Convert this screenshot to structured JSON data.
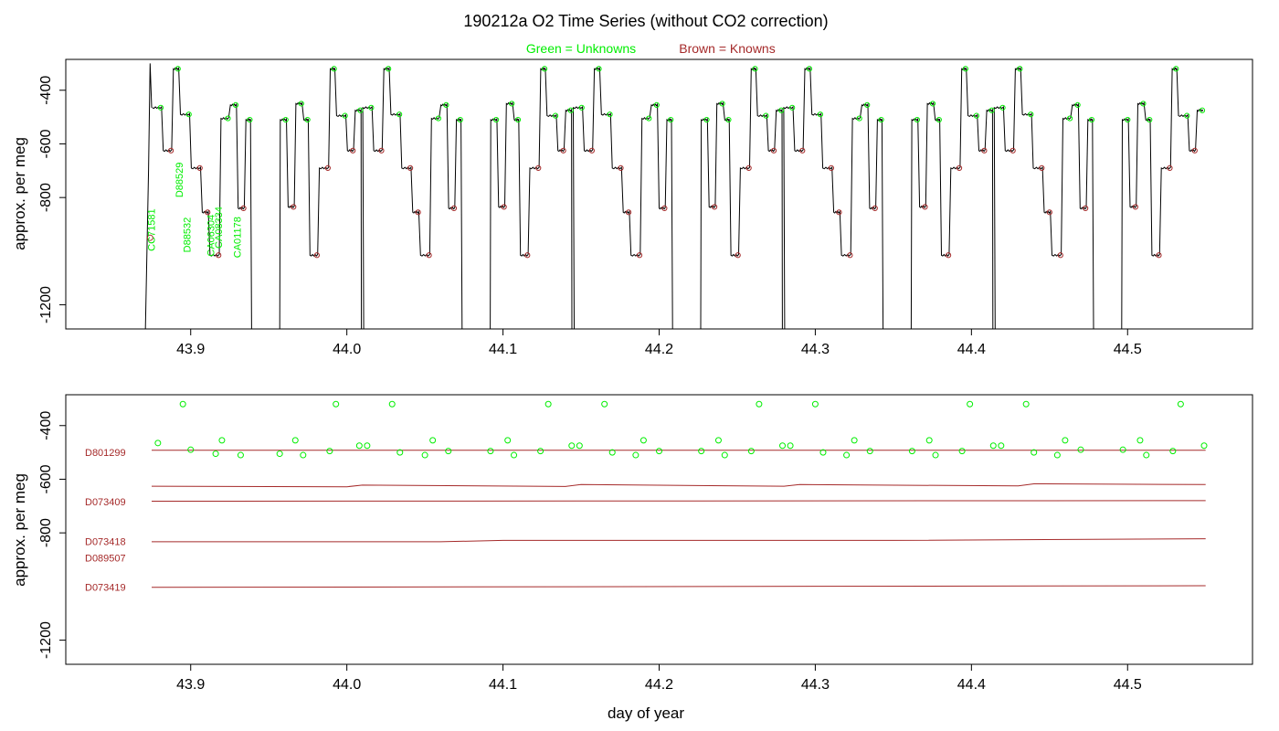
{
  "title": "190212a   O2 Time Series (without CO2 correction)",
  "legend": {
    "unknowns": "Green = Unknowns",
    "knowns": "Brown = Knowns"
  },
  "colors": {
    "unknowns": "#00ee00",
    "knowns": "#a52a2a",
    "trace": "#000000"
  },
  "x_axis": {
    "label": "day of year",
    "range": [
      43.82,
      44.58
    ],
    "ticks": [
      43.9,
      44.0,
      44.1,
      44.2,
      44.3,
      44.4,
      44.5
    ],
    "tick_labels": [
      "43.9",
      "44.0",
      "44.1",
      "44.2",
      "44.3",
      "44.4",
      "44.5"
    ]
  },
  "chart_data": [
    {
      "type": "line",
      "panel": "top",
      "ylabel": "approx. per meg",
      "ylim": [
        -1290,
        -285
      ],
      "yticks": [
        -400,
        -600,
        -800,
        -1200
      ],
      "ytick_labels": [
        "-400",
        "-600",
        "-800",
        "-1200"
      ],
      "sample_labels": [
        {
          "text": "CC71581",
          "x": 43.877,
          "y": -1000
        },
        {
          "text": "D88529",
          "x": 43.895,
          "y": -800
        },
        {
          "text": "D88532",
          "x": 43.9,
          "y": -1005
        },
        {
          "text": "CA06304",
          "x": 43.915,
          "y": -1020
        },
        {
          "text": "CA08334",
          "x": 43.92,
          "y": -990
        },
        {
          "text": "CA01178",
          "x": 43.932,
          "y": -1025
        }
      ],
      "cycle": {
        "start": 43.875,
        "period": 0.1348,
        "segments": [
          {
            "d": 0.0,
            "v": -465,
            "k": "U"
          },
          {
            "d": 0.007,
            "v": -625,
            "k": "K"
          },
          {
            "d": 0.0135,
            "v": -320,
            "k": "U"
          },
          {
            "d": 0.018,
            "v": -490,
            "k": "U"
          },
          {
            "d": 0.025,
            "v": -690,
            "k": "K"
          },
          {
            "d": 0.032,
            "v": -855,
            "k": "K"
          },
          {
            "d": 0.037,
            "v": -1015,
            "k": "K"
          },
          {
            "d": 0.044,
            "v": -505,
            "k": "U"
          },
          {
            "d": 0.05,
            "v": -455,
            "k": "U"
          },
          {
            "d": 0.055,
            "v": -840,
            "k": "K"
          },
          {
            "d": 0.06,
            "v": -510,
            "k": "U"
          },
          {
            "d": 0.064,
            "v": null,
            "k": "G"
          },
          {
            "d": 0.082,
            "v": -510,
            "k": "U"
          },
          {
            "d": 0.087,
            "v": -835,
            "k": "K"
          },
          {
            "d": 0.092,
            "v": -450,
            "k": "U"
          },
          {
            "d": 0.097,
            "v": -510,
            "k": "U"
          },
          {
            "d": 0.101,
            "v": -1015,
            "k": "K"
          },
          {
            "d": 0.107,
            "v": -690,
            "k": "K"
          },
          {
            "d": 0.114,
            "v": -320,
            "k": "U"
          },
          {
            "d": 0.118,
            "v": -495,
            "k": "U"
          },
          {
            "d": 0.125,
            "v": -625,
            "k": "K"
          },
          {
            "d": 0.13,
            "v": -475,
            "k": "U"
          }
        ]
      }
    },
    {
      "type": "line",
      "panel": "bottom",
      "ylabel": "approx. per meg",
      "ylim": [
        -1290,
        -285
      ],
      "yticks": [
        -400,
        -600,
        -800,
        -1200
      ],
      "ytick_labels": [
        "-400",
        "-600",
        "-800",
        "-1200"
      ],
      "series": [
        {
          "name": "D801299",
          "label_y": -500,
          "x": [
            43.875,
            44.55
          ],
          "y": [
            -492,
            -492
          ]
        },
        {
          "name": "",
          "x": [
            43.875,
            44.0,
            44.01,
            44.14,
            44.15,
            44.28,
            44.29,
            44.43,
            44.44,
            44.55
          ],
          "y": [
            -626,
            -628,
            -622,
            -627,
            -620,
            -626,
            -620,
            -625,
            -617,
            -620
          ]
        },
        {
          "name": "D073409",
          "label_y": -684,
          "x": [
            43.875,
            44.55
          ],
          "y": [
            -682,
            -680
          ]
        },
        {
          "name": "D073418",
          "label_y": -832,
          "x": [
            43.875,
            44.06,
            44.1,
            44.35,
            44.55
          ],
          "y": [
            -833,
            -833,
            -828,
            -828,
            -822
          ]
        },
        {
          "name": "D089507",
          "label_y": -893,
          "x": [],
          "y": []
        },
        {
          "name": "D073419",
          "label_y": -1002,
          "x": [
            43.875,
            44.55
          ],
          "y": [
            -1003,
            -997
          ]
        }
      ],
      "points": {
        "x": [
          43.879,
          43.895,
          43.9,
          43.916,
          43.92,
          43.932,
          43.957,
          43.967,
          43.972,
          43.989,
          43.993,
          44.008,
          44.013,
          44.029,
          44.034,
          44.05,
          44.055,
          44.065,
          44.092,
          44.103,
          44.107,
          44.124,
          44.129,
          44.144,
          44.149,
          44.165,
          44.17,
          44.185,
          44.19,
          44.2,
          44.227,
          44.238,
          44.242,
          44.259,
          44.264,
          44.279,
          44.284,
          44.3,
          44.305,
          44.32,
          44.325,
          44.335,
          44.362,
          44.373,
          44.377,
          44.394,
          44.399,
          44.414,
          44.419,
          44.435,
          44.44,
          44.455,
          44.46,
          44.47,
          44.497,
          44.508,
          44.512,
          44.529,
          44.534,
          44.549
        ],
        "y": [
          -465,
          -320,
          -490,
          -505,
          -455,
          -510,
          -505,
          -455,
          -510,
          -495,
          -320,
          -475,
          -475,
          -320,
          -500,
          -510,
          -455,
          -495,
          -495,
          -455,
          -510,
          -495,
          -320,
          -475,
          -475,
          -320,
          -500,
          -510,
          -455,
          -495,
          -495,
          -455,
          -510,
          -495,
          -320,
          -475,
          -475,
          -320,
          -500,
          -510,
          -455,
          -495,
          -495,
          -455,
          -510,
          -495,
          -320,
          -475,
          -475,
          -320,
          -500,
          -510,
          -455,
          -490,
          -490,
          -455,
          -510,
          -495,
          -320,
          -475
        ]
      }
    }
  ]
}
